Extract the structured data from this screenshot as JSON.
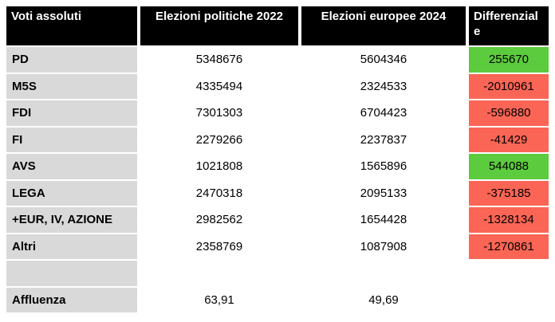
{
  "chart_data": {
    "type": "table",
    "columns": {
      "label": "Voti assoluti",
      "politiche_2022": "Elezioni politiche 2022",
      "europee_2024": "Elezioni europee 2024",
      "diff": "Differenziale"
    },
    "rows": [
      {
        "label": "PD",
        "v2022": "5348676",
        "v2024": "5604346",
        "diff": "255670",
        "diff_status": "positive"
      },
      {
        "label": "M5S",
        "v2022": "4335494",
        "v2024": "2324533",
        "diff": "-2010961",
        "diff_status": "negative"
      },
      {
        "label": "FDI",
        "v2022": "7301303",
        "v2024": "6704423",
        "diff": "-596880",
        "diff_status": "negative"
      },
      {
        "label": "FI",
        "v2022": "2279266",
        "v2024": "2237837",
        "diff": "-41429",
        "diff_status": "negative"
      },
      {
        "label": "AVS",
        "v2022": "1021808",
        "v2024": "1565896",
        "diff": "544088",
        "diff_status": "positive"
      },
      {
        "label": "LEGA",
        "v2022": "2470318",
        "v2024": "2095133",
        "diff": "-375185",
        "diff_status": "negative"
      },
      {
        "label": "+EUR, IV, AZIONE",
        "v2022": "2982562",
        "v2024": "1654428",
        "diff": "-1328134",
        "diff_status": "negative"
      },
      {
        "label": "Altri",
        "v2022": "2358769",
        "v2024": "1087908",
        "diff": "-1270861",
        "diff_status": "negative"
      },
      {
        "label": "",
        "v2022": "",
        "v2024": "",
        "diff": "",
        "diff_status": "none"
      },
      {
        "label": "Affluenza",
        "v2022": "63,91",
        "v2024": "49,69",
        "diff": "",
        "diff_status": "none"
      }
    ],
    "colors": {
      "positive": "#5ccb3d",
      "negative": "#fa6555",
      "header_bg": "#000000",
      "header_text": "#ffffff",
      "label_bg": "#d9d9d9",
      "text": "#000000",
      "background": "#ffffff"
    }
  }
}
